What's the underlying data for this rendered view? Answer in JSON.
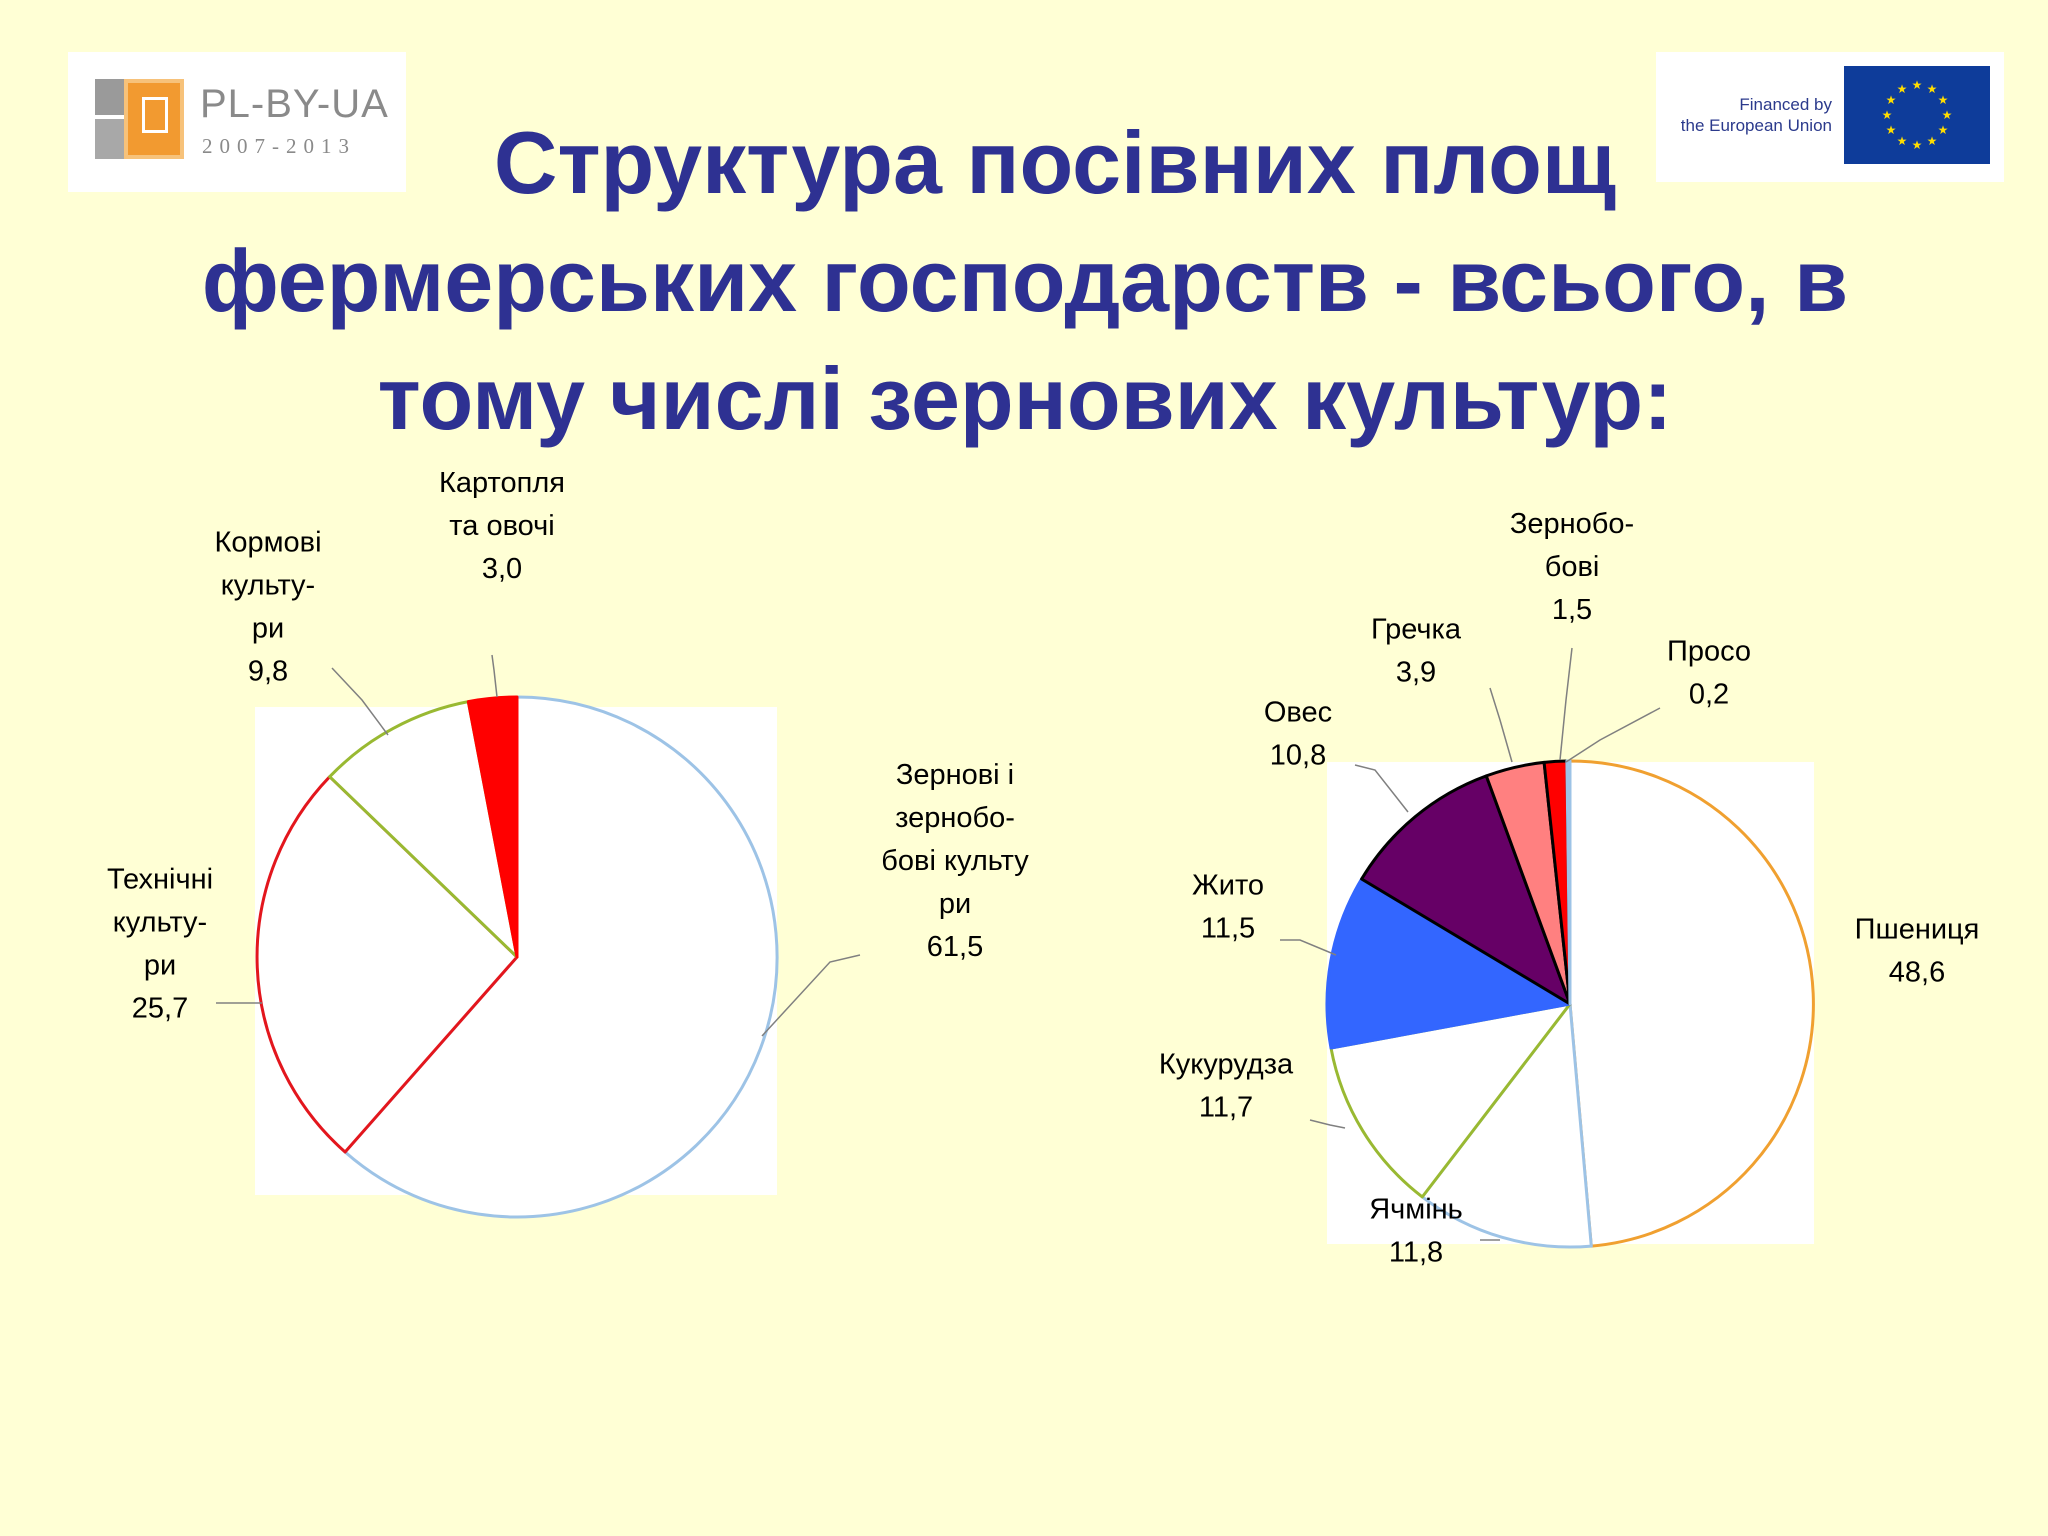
{
  "logos": {
    "left": {
      "brand": "PL-BY-UA",
      "years": "2007-2013"
    },
    "right": {
      "financed_line1": "Financed by",
      "financed_line2": "the European Union",
      "flag_icon": "eu-flag-icon"
    }
  },
  "title": {
    "line1": "Структура посівних площ",
    "line2": "фермерських господарств -  всього, в",
    "line3": "тому числі зернових культур:"
  },
  "chart_data": [
    {
      "type": "pie",
      "title": "",
      "slices": [
        {
          "label_lines": [
            "Зернові і",
            "зернобо-",
            "бові культу",
            "ри"
          ],
          "value": 61.5,
          "value_text": "61,5",
          "fill": "#FFFFFF",
          "stroke": "#9DC3E6"
        },
        {
          "label_lines": [
            "Технічні",
            "культу-",
            "ри"
          ],
          "value": 25.7,
          "value_text": "25,7",
          "fill": "#FFFFFF",
          "stroke": "#E3161D"
        },
        {
          "label_lines": [
            "Кормові",
            "культу-",
            "ри"
          ],
          "value": 9.8,
          "value_text": "9,8",
          "fill": "#FFFFFF",
          "stroke": "#99B932"
        },
        {
          "label_lines": [
            "Картопля",
            "та овочі"
          ],
          "value": 3.0,
          "value_text": "3,0",
          "fill": "#FF0000",
          "stroke": "#FF0000"
        }
      ]
    },
    {
      "type": "pie",
      "title": "",
      "slices": [
        {
          "label_lines": [
            "Пшениця"
          ],
          "value": 48.6,
          "value_text": "48,6",
          "fill": "#FFFFFF",
          "stroke": "#F0A030"
        },
        {
          "label_lines": [
            "Ячмінь"
          ],
          "value": 11.8,
          "value_text": "11,8",
          "fill": "#FFFFFF",
          "stroke": "#9DC3E6"
        },
        {
          "label_lines": [
            "Кукурудза"
          ],
          "value": 11.7,
          "value_text": "11,7",
          "fill": "#FFFFFF",
          "stroke": "#99B932"
        },
        {
          "label_lines": [
            "Жито"
          ],
          "value": 11.5,
          "value_text": "11,5",
          "fill": "#3366FF",
          "stroke": "#3366FF"
        },
        {
          "label_lines": [
            "Овес"
          ],
          "value": 10.8,
          "value_text": "10,8",
          "fill": "#660066",
          "stroke": "#000000"
        },
        {
          "label_lines": [
            "Гречка"
          ],
          "value": 3.9,
          "value_text": "3,9",
          "fill": "#FF8080",
          "stroke": "#000000"
        },
        {
          "label_lines": [
            "Зернобо-",
            "бові"
          ],
          "value": 1.5,
          "value_text": "1,5",
          "fill": "#FF0000",
          "stroke": "#000000"
        },
        {
          "label_lines": [
            "Просо"
          ],
          "value": 0.2,
          "value_text": "0,2",
          "fill": "#CCECFF",
          "stroke": "#9DC3E6"
        }
      ]
    }
  ]
}
